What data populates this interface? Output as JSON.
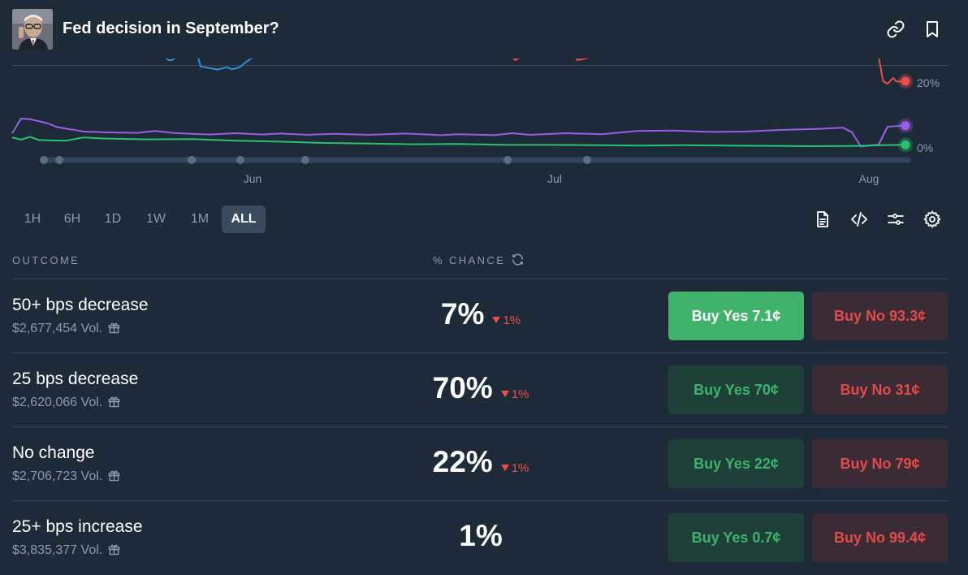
{
  "header": {
    "title": "Fed decision in September?"
  },
  "chart_data": {
    "type": "line",
    "x_ticks": [
      "Jun",
      "Jul",
      "Aug"
    ],
    "y_ticks": [
      "20%",
      "0%"
    ],
    "ylim": [
      0,
      30
    ],
    "x_domain": [
      0,
      100
    ],
    "grid": false,
    "series": [
      {
        "color": "#9b5de5",
        "points": [
          [
            0,
            4.5
          ],
          [
            1,
            9
          ],
          [
            2,
            8.8
          ],
          [
            3,
            8.2
          ],
          [
            4,
            7.5
          ],
          [
            5,
            6.4
          ],
          [
            6,
            5.9
          ],
          [
            7,
            5.5
          ],
          [
            8,
            5
          ],
          [
            10,
            4.8
          ],
          [
            14,
            4.6
          ],
          [
            16,
            5.2
          ],
          [
            18,
            4.6
          ],
          [
            20,
            4.3
          ],
          [
            22,
            4.1
          ],
          [
            25,
            4.5
          ],
          [
            28,
            4.1
          ],
          [
            30,
            4.4
          ],
          [
            33,
            4
          ],
          [
            36,
            4.3
          ],
          [
            40,
            4
          ],
          [
            44,
            4.4
          ],
          [
            48,
            3.9
          ],
          [
            50,
            4.2
          ],
          [
            54,
            3.9
          ],
          [
            56,
            4.5
          ],
          [
            58,
            4
          ],
          [
            62,
            4.5
          ],
          [
            66,
            4.2
          ],
          [
            70,
            5.2
          ],
          [
            74,
            5.3
          ],
          [
            78,
            4.9
          ],
          [
            82,
            5
          ],
          [
            86,
            5.5
          ],
          [
            90,
            5.8
          ],
          [
            93,
            6.2
          ],
          [
            94,
            4.8
          ],
          [
            95,
            0.4
          ],
          [
            97,
            1
          ],
          [
            98,
            6.5
          ],
          [
            100,
            6.8
          ]
        ]
      },
      {
        "color": "#2cc16d",
        "points": [
          [
            0,
            3.2
          ],
          [
            1,
            2.5
          ],
          [
            2,
            3.4
          ],
          [
            3,
            2.4
          ],
          [
            4,
            2.3
          ],
          [
            6,
            2.2
          ],
          [
            8,
            3.2
          ],
          [
            10,
            2.9
          ],
          [
            15,
            2.6
          ],
          [
            20,
            2.7
          ],
          [
            25,
            2.2
          ],
          [
            30,
            1.9
          ],
          [
            35,
            1.5
          ],
          [
            40,
            1.3
          ],
          [
            45,
            1.1
          ],
          [
            50,
            1.2
          ],
          [
            55,
            0.9
          ],
          [
            60,
            0.9
          ],
          [
            65,
            0.8
          ],
          [
            70,
            0.7
          ],
          [
            75,
            0.8
          ],
          [
            80,
            0.7
          ],
          [
            85,
            0.6
          ],
          [
            90,
            0.5
          ],
          [
            95,
            0.6
          ],
          [
            97,
            0.8
          ],
          [
            100,
            0.9
          ]
        ]
      },
      {
        "color": "#ef4b4b",
        "points": [
          [
            56,
            28
          ],
          [
            56.3,
            27
          ],
          [
            57,
            28
          ],
          [
            63,
            28
          ],
          [
            63.3,
            27
          ],
          [
            64.2,
            27.5
          ],
          [
            65,
            28
          ],
          [
            97,
            28
          ],
          [
            97.5,
            20.5
          ],
          [
            98,
            19.7
          ],
          [
            98.6,
            21.5
          ],
          [
            99,
            20.4
          ],
          [
            100,
            20.5
          ]
        ]
      },
      {
        "color": "#2d8fd9",
        "points": [
          [
            17,
            28
          ],
          [
            17.5,
            27
          ],
          [
            17.9,
            27
          ],
          [
            18.4,
            28
          ],
          [
            20.8,
            28
          ],
          [
            21.1,
            25
          ],
          [
            22,
            24.6
          ],
          [
            23,
            24.1
          ],
          [
            24,
            24.8
          ],
          [
            24.6,
            24.2
          ],
          [
            25.4,
            24.7
          ],
          [
            26,
            26
          ],
          [
            27,
            28
          ]
        ]
      }
    ]
  },
  "time_ranges": [
    {
      "label": "1H",
      "active": false
    },
    {
      "label": "6H",
      "active": false
    },
    {
      "label": "1D",
      "active": false
    },
    {
      "label": "1W",
      "active": false
    },
    {
      "label": "1M",
      "active": false
    },
    {
      "label": "ALL",
      "active": true
    }
  ],
  "tools": [
    "document-icon",
    "code-icon",
    "sliders-icon",
    "gear-icon"
  ],
  "table": {
    "col_outcome": "OUTCOME",
    "col_chance": "% CHANCE",
    "rows": [
      {
        "name": "50+ bps decrease",
        "volume": "$2,677,454 Vol.",
        "chance": "7%",
        "change": "1%",
        "yes_label": "Buy Yes 7.1¢",
        "no_label": "Buy No 93.3¢",
        "yes_active": true
      },
      {
        "name": "25 bps decrease",
        "volume": "$2,620,066 Vol.",
        "chance": "70%",
        "change": "1%",
        "yes_label": "Buy Yes 70¢",
        "no_label": "Buy No 31¢",
        "yes_active": false
      },
      {
        "name": "No change",
        "volume": "$2,706,723 Vol.",
        "chance": "22%",
        "change": "1%",
        "yes_label": "Buy Yes 22¢",
        "no_label": "Buy No 79¢",
        "yes_active": false
      },
      {
        "name": "25+ bps increase",
        "volume": "$3,835,377 Vol.",
        "chance": "1%",
        "change": "",
        "yes_label": "Buy Yes 0.7¢",
        "no_label": "Buy No 99.4¢",
        "yes_active": false
      }
    ]
  }
}
